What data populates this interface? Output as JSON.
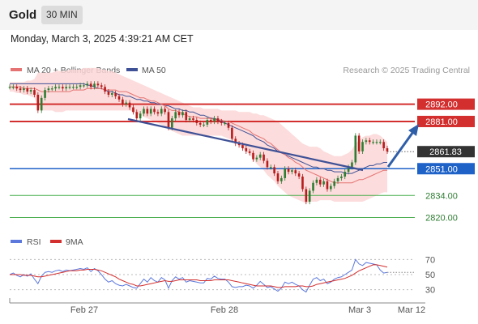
{
  "header": {
    "title": "Gold",
    "timeframe": "30 MIN"
  },
  "timestamp": "Monday, March 3, 2025 4:39:21 AM CET",
  "colors": {
    "up": "#2e7d32",
    "down": "#b71c1c",
    "ma20": "#e57373",
    "ma50": "#3f5196",
    "bands": "#fbd6d6",
    "resistance": "#d32f2f",
    "support_blue": "#1e62c8",
    "support_green": "#4caf50",
    "price": "#333333",
    "rsi": "#5c78dc",
    "rsi_ma": "#d32f2f"
  },
  "chart_data": [
    {
      "type": "candlestick",
      "legend": [
        {
          "name": "MA 20 + Bollinger Bands",
          "color": "#e57373"
        },
        {
          "name": "MA 50",
          "color": "#3f5196"
        }
      ],
      "watermark": "Research © 2025 Trading Central",
      "x_ticks": [
        "Feb 27",
        "Feb 28",
        "Mar 3",
        "Mar 12"
      ],
      "ylim": [
        2812,
        2916
      ],
      "levels": [
        {
          "label": "2892.00",
          "value": 2892,
          "kind": "resistance",
          "color": "#d32f2f"
        },
        {
          "label": "2881.00",
          "value": 2881,
          "kind": "resistance",
          "color": "#d32f2f"
        },
        {
          "label": "2861.83",
          "value": 2861.83,
          "kind": "last_price",
          "color": "#333333"
        },
        {
          "label": "2851.00",
          "value": 2851,
          "kind": "pivot",
          "color": "#1e62c8"
        },
        {
          "label": "2834.00",
          "value": 2834,
          "kind": "support",
          "color": "#4caf50"
        },
        {
          "label": "2820.00",
          "value": 2820,
          "kind": "support",
          "color": "#4caf50"
        }
      ],
      "closes": [
        2903,
        2903,
        2902,
        2901,
        2902,
        2900,
        2901,
        2898,
        2888,
        2896,
        2901,
        2902,
        2902,
        2903,
        2903,
        2902,
        2903,
        2903,
        2903,
        2903,
        2904,
        2904,
        2905,
        2903,
        2905,
        2904,
        2903,
        2900,
        2898,
        2899,
        2897,
        2895,
        2892,
        2893,
        2890,
        2887,
        2883,
        2886,
        2889,
        2886,
        2889,
        2887,
        2886,
        2889,
        2887,
        2877,
        2883,
        2887,
        2885,
        2887,
        2882,
        2883,
        2882,
        2880,
        2879,
        2879,
        2882,
        2881,
        2883,
        2881,
        2880,
        2880,
        2877,
        2870,
        2867,
        2866,
        2864,
        2862,
        2861,
        2857,
        2858,
        2860,
        2856,
        2852,
        2852,
        2848,
        2843,
        2845,
        2851,
        2849,
        2850,
        2848,
        2846,
        2838,
        2830,
        2837,
        2842,
        2844,
        2841,
        2843,
        2838,
        2840,
        2843,
        2845,
        2846,
        2849,
        2852,
        2855,
        2872,
        2862,
        2868,
        2869,
        2868,
        2868,
        2868,
        2868,
        2864,
        2862
      ],
      "ma20": [
        2903,
        2903,
        2903,
        2903,
        2902,
        2902,
        2902,
        2902,
        2901,
        2900,
        2900,
        2900,
        2900,
        2900,
        2900,
        2900,
        2900,
        2900,
        2901,
        2901,
        2901,
        2901,
        2902,
        2902,
        2902,
        2902,
        2902,
        2901,
        2901,
        2901,
        2901,
        2900,
        2900,
        2900,
        2899,
        2898,
        2897,
        2896,
        2896,
        2895,
        2894,
        2894,
        2893,
        2892,
        2891,
        2889,
        2888,
        2888,
        2887,
        2886,
        2885,
        2884,
        2884,
        2884,
        2883,
        2883,
        2883,
        2883,
        2882,
        2882,
        2882,
        2881,
        2881,
        2880,
        2879,
        2878,
        2877,
        2876,
        2875,
        2873,
        2872,
        2871,
        2870,
        2868,
        2867,
        2865,
        2863,
        2861,
        2860,
        2858,
        2857,
        2855,
        2854,
        2852,
        2850,
        2849,
        2848,
        2847,
        2846,
        2845,
        2844,
        2843,
        2842,
        2842,
        2842,
        2842,
        2842,
        2842,
        2843,
        2844,
        2844,
        2845,
        2846,
        2847,
        2848,
        2849,
        2850,
        2850
      ],
      "bb_upper": [
        2906,
        2906,
        2906,
        2906,
        2906,
        2907,
        2907,
        2908,
        2912,
        2912,
        2912,
        2912,
        2912,
        2913,
        2913,
        2913,
        2913,
        2914,
        2914,
        2914,
        2914,
        2915,
        2915,
        2915,
        2915,
        2915,
        2914,
        2914,
        2913,
        2913,
        2912,
        2911,
        2910,
        2909,
        2908,
        2907,
        2906,
        2905,
        2904,
        2903,
        2902,
        2901,
        2900,
        2899,
        2898,
        2897,
        2896,
        2895,
        2894,
        2893,
        2892,
        2891,
        2890,
        2890,
        2890,
        2889,
        2889,
        2889,
        2889,
        2889,
        2888,
        2888,
        2888,
        2888,
        2888,
        2887,
        2887,
        2887,
        2887,
        2886,
        2886,
        2885,
        2885,
        2884,
        2883,
        2882,
        2881,
        2879,
        2877,
        2875,
        2873,
        2871,
        2869,
        2867,
        2866,
        2865,
        2865,
        2865,
        2864,
        2862,
        2861,
        2860,
        2859,
        2859,
        2859,
        2860,
        2861,
        2863,
        2867,
        2869,
        2871,
        2872,
        2872,
        2873,
        2873,
        2872,
        2870,
        2868
      ],
      "bb_lower": [
        2900,
        2900,
        2899,
        2899,
        2898,
        2898,
        2897,
        2896,
        2890,
        2888,
        2888,
        2888,
        2888,
        2887,
        2887,
        2887,
        2888,
        2888,
        2888,
        2888,
        2888,
        2888,
        2888,
        2888,
        2888,
        2888,
        2888,
        2888,
        2888,
        2888,
        2888,
        2888,
        2888,
        2888,
        2888,
        2887,
        2886,
        2885,
        2884,
        2883,
        2882,
        2881,
        2880,
        2879,
        2878,
        2876,
        2875,
        2874,
        2873,
        2872,
        2872,
        2872,
        2872,
        2872,
        2872,
        2872,
        2872,
        2872,
        2872,
        2872,
        2872,
        2871,
        2870,
        2869,
        2868,
        2866,
        2864,
        2862,
        2860,
        2857,
        2854,
        2852,
        2850,
        2847,
        2845,
        2843,
        2840,
        2838,
        2836,
        2834,
        2833,
        2832,
        2831,
        2830,
        2829,
        2830,
        2830,
        2830,
        2831,
        2831,
        2831,
        2831,
        2830,
        2830,
        2830,
        2830,
        2830,
        2830,
        2830,
        2830,
        2830,
        2831,
        2832,
        2833,
        2834,
        2835,
        2836,
        2836
      ],
      "ma50": [
        2905,
        2905,
        2905,
        2905,
        2905,
        2905,
        2905,
        2905,
        2905,
        2905,
        2905,
        2905,
        2905,
        2905,
        2905,
        2905,
        2905,
        2905,
        2905,
        2905,
        2905,
        2905,
        2904,
        2904,
        2903,
        2902,
        2902,
        2901,
        2900,
        2900,
        2899,
        2898,
        2898,
        2897,
        2897,
        2896,
        2895,
        2895,
        2894,
        2894,
        2893,
        2893,
        2892,
        2892,
        2891,
        2891,
        2890,
        2889,
        2889,
        2888,
        2888,
        2887,
        2887,
        2886,
        2885,
        2885,
        2884,
        2883,
        2883,
        2882,
        2881,
        2880,
        2879,
        2878,
        2877,
        2876,
        2875,
        2874,
        2873,
        2872,
        2870,
        2869,
        2868,
        2866,
        2865,
        2864,
        2862,
        2861,
        2860,
        2859,
        2858,
        2857,
        2856,
        2855,
        2854,
        2853,
        2852,
        2852,
        2851,
        2851,
        2850,
        2850,
        2849,
        2849,
        2849,
        2848,
        2848,
        2848,
        2849,
        2850,
        2851,
        2852,
        2853,
        2853,
        2854,
        2854,
        2855,
        2855
      ]
    },
    {
      "type": "line",
      "legend": [
        {
          "name": "RSI",
          "color": "#5c78dc"
        },
        {
          "name": "9MA",
          "color": "#d32f2f"
        }
      ],
      "yticks": [
        "70",
        "50",
        "30"
      ],
      "ylim": [
        20,
        80
      ],
      "rsi": [
        50,
        52,
        49,
        47,
        50,
        48,
        51,
        44,
        38,
        48,
        53,
        54,
        53,
        55,
        56,
        54,
        56,
        55,
        56,
        57,
        58,
        57,
        59,
        54,
        58,
        55,
        50,
        44,
        40,
        42,
        38,
        36,
        35,
        37,
        35,
        33,
        32,
        38,
        44,
        40,
        46,
        42,
        40,
        46,
        43,
        32,
        42,
        47,
        44,
        46,
        40,
        42,
        41,
        40,
        39,
        39,
        45,
        44,
        48,
        45,
        44,
        44,
        40,
        34,
        33,
        34,
        34,
        36,
        35,
        32,
        36,
        41,
        37,
        33,
        34,
        31,
        28,
        32,
        40,
        38,
        40,
        37,
        35,
        30,
        27,
        36,
        44,
        46,
        42,
        44,
        38,
        40,
        44,
        46,
        47,
        50,
        53,
        56,
        70,
        64,
        62,
        66,
        65,
        64,
        63,
        56,
        52,
        53
      ],
      "rsi_ma": [
        50,
        50,
        50,
        50,
        49,
        49,
        49,
        48,
        47,
        47,
        48,
        49,
        50,
        51,
        52,
        53,
        54,
        55,
        55,
        55,
        56,
        56,
        57,
        57,
        57,
        56,
        55,
        53,
        51,
        49,
        47,
        44,
        42,
        40,
        38,
        37,
        35,
        35,
        36,
        37,
        38,
        39,
        40,
        41,
        42,
        41,
        41,
        42,
        43,
        43,
        43,
        43,
        43,
        43,
        42,
        42,
        42,
        42,
        43,
        43,
        43,
        43,
        43,
        42,
        41,
        40,
        39,
        38,
        37,
        36,
        35,
        35,
        35,
        35,
        35,
        34,
        33,
        33,
        34,
        34,
        34,
        34,
        35,
        35,
        34,
        34,
        35,
        37,
        38,
        39,
        40,
        41,
        42,
        43,
        44,
        45,
        47,
        49,
        52,
        55,
        57,
        59,
        61,
        63,
        63,
        62,
        61,
        60
      ]
    }
  ]
}
